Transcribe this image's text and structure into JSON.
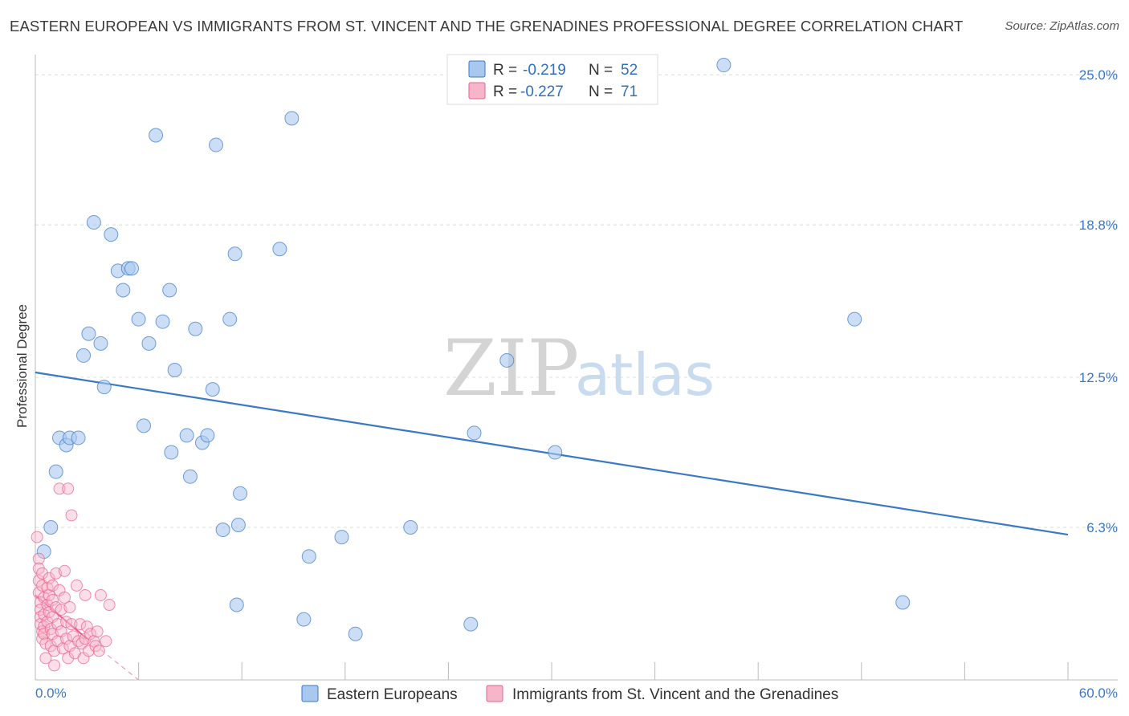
{
  "title": "EASTERN EUROPEAN VS IMMIGRANTS FROM ST. VINCENT AND THE GRENADINES PROFESSIONAL DEGREE CORRELATION CHART",
  "source": "Source: ZipAtlas.com",
  "watermark": {
    "zip": "ZIP",
    "atlas": "atlas"
  },
  "legend_box": {
    "rows": [
      {
        "r_label": "R =",
        "r_value": "-0.219",
        "n_label": "N =",
        "n_value": "52",
        "color": "#a9c8ef"
      },
      {
        "r_label": "R =",
        "r_value": "-0.227",
        "n_label": "N =",
        "n_value": "71",
        "color": "#f6b6c9"
      }
    ]
  },
  "bottom_legend": [
    {
      "label": "Eastern Europeans",
      "color": "#a9c8ef"
    },
    {
      "label": "Immigrants from St. Vincent and the Grenadines",
      "color": "#f6b6c9"
    }
  ],
  "chart_data": {
    "type": "scatter",
    "title": "EASTERN EUROPEAN VS IMMIGRANTS FROM ST. VINCENT AND THE GRENADINES PROFESSIONAL DEGREE CORRELATION CHART",
    "xlabel": "",
    "ylabel": "Professional Degree",
    "xlim": [
      0,
      60
    ],
    "ylim": [
      0,
      25.7
    ],
    "x_tick_labels": [
      "0.0%",
      "60.0%"
    ],
    "y_ticks": [
      6.3,
      12.5,
      18.8,
      25.0
    ],
    "y_tick_labels": [
      "6.3%",
      "12.5%",
      "18.8%",
      "25.0%"
    ],
    "grid": true,
    "legend_position": "top-center",
    "series": [
      {
        "name": "Eastern Europeans",
        "color": "#3a78c8",
        "fill": "#a9c8ef",
        "r": -0.219,
        "n": 52,
        "points": [
          [
            0.5,
            5.3
          ],
          [
            0.9,
            6.3
          ],
          [
            1.2,
            8.6
          ],
          [
            1.4,
            10.0
          ],
          [
            1.8,
            9.7
          ],
          [
            2.0,
            10.0
          ],
          [
            2.5,
            10.0
          ],
          [
            2.8,
            13.4
          ],
          [
            3.1,
            14.3
          ],
          [
            3.4,
            18.9
          ],
          [
            3.8,
            13.9
          ],
          [
            4.0,
            12.1
          ],
          [
            4.4,
            18.4
          ],
          [
            4.8,
            16.9
          ],
          [
            5.1,
            16.1
          ],
          [
            5.4,
            17.0
          ],
          [
            5.6,
            17.0
          ],
          [
            6.0,
            14.9
          ],
          [
            6.3,
            10.5
          ],
          [
            6.6,
            13.9
          ],
          [
            7.0,
            22.5
          ],
          [
            7.4,
            14.8
          ],
          [
            7.8,
            16.1
          ],
          [
            7.9,
            9.4
          ],
          [
            8.1,
            12.8
          ],
          [
            8.8,
            10.1
          ],
          [
            9.0,
            8.4
          ],
          [
            9.3,
            14.5
          ],
          [
            9.7,
            9.8
          ],
          [
            10.0,
            10.1
          ],
          [
            10.3,
            12.0
          ],
          [
            10.5,
            22.1
          ],
          [
            10.9,
            6.2
          ],
          [
            11.3,
            14.9
          ],
          [
            11.6,
            17.6
          ],
          [
            11.7,
            3.1
          ],
          [
            11.8,
            6.4
          ],
          [
            11.9,
            7.7
          ],
          [
            14.9,
            23.2
          ],
          [
            14.2,
            17.8
          ],
          [
            15.6,
            2.5
          ],
          [
            15.9,
            5.1
          ],
          [
            17.8,
            5.9
          ],
          [
            18.6,
            1.9
          ],
          [
            21.8,
            6.3
          ],
          [
            25.3,
            2.3
          ],
          [
            25.5,
            10.2
          ],
          [
            27.4,
            13.2
          ],
          [
            30.2,
            9.4
          ],
          [
            47.6,
            14.9
          ],
          [
            50.4,
            3.2
          ],
          [
            40.0,
            25.4
          ]
        ]
      },
      {
        "name": "Immigrants from St. Vincent and the Grenadines",
        "color": "#e8608e",
        "fill": "#f6b6c9",
        "r": -0.227,
        "n": 71,
        "points": [
          [
            0.1,
            5.9
          ],
          [
            0.2,
            5.0
          ],
          [
            0.2,
            4.6
          ],
          [
            0.2,
            4.1
          ],
          [
            0.2,
            3.6
          ],
          [
            0.3,
            3.2
          ],
          [
            0.3,
            2.9
          ],
          [
            0.3,
            2.6
          ],
          [
            0.3,
            2.3
          ],
          [
            0.4,
            2.0
          ],
          [
            0.4,
            1.7
          ],
          [
            0.4,
            4.4
          ],
          [
            0.4,
            3.9
          ],
          [
            0.5,
            3.4
          ],
          [
            0.5,
            2.7
          ],
          [
            0.5,
            2.2
          ],
          [
            0.5,
            1.9
          ],
          [
            0.6,
            1.5
          ],
          [
            0.6,
            0.9
          ],
          [
            0.7,
            3.8
          ],
          [
            0.7,
            3.1
          ],
          [
            0.7,
            2.4
          ],
          [
            0.8,
            4.2
          ],
          [
            0.8,
            3.5
          ],
          [
            0.8,
            2.8
          ],
          [
            0.9,
            2.1
          ],
          [
            0.9,
            1.4
          ],
          [
            1.0,
            3.9
          ],
          [
            1.0,
            3.3
          ],
          [
            1.0,
            2.6
          ],
          [
            1.0,
            1.9
          ],
          [
            1.1,
            1.2
          ],
          [
            1.1,
            0.6
          ],
          [
            1.2,
            4.4
          ],
          [
            1.2,
            3.0
          ],
          [
            1.3,
            2.3
          ],
          [
            1.3,
            1.6
          ],
          [
            1.4,
            7.9
          ],
          [
            1.4,
            3.7
          ],
          [
            1.5,
            2.9
          ],
          [
            1.5,
            2.0
          ],
          [
            1.6,
            1.3
          ],
          [
            1.7,
            4.5
          ],
          [
            1.7,
            3.4
          ],
          [
            1.8,
            2.4
          ],
          [
            1.8,
            1.7
          ],
          [
            1.9,
            7.9
          ],
          [
            1.9,
            0.9
          ],
          [
            2.0,
            1.4
          ],
          [
            2.0,
            3.0
          ],
          [
            2.1,
            6.8
          ],
          [
            2.1,
            2.3
          ],
          [
            2.2,
            1.8
          ],
          [
            2.3,
            1.1
          ],
          [
            2.4,
            3.9
          ],
          [
            2.5,
            1.6
          ],
          [
            2.6,
            2.3
          ],
          [
            2.7,
            1.5
          ],
          [
            2.8,
            0.9
          ],
          [
            2.9,
            1.7
          ],
          [
            3.0,
            2.2
          ],
          [
            3.1,
            1.2
          ],
          [
            3.2,
            1.9
          ],
          [
            3.4,
            1.6
          ],
          [
            3.5,
            1.4
          ],
          [
            3.6,
            2.0
          ],
          [
            3.7,
            1.2
          ],
          [
            3.8,
            3.5
          ],
          [
            4.1,
            1.6
          ],
          [
            4.3,
            3.1
          ],
          [
            2.9,
            3.5
          ]
        ]
      }
    ],
    "trendlines": [
      {
        "series": "Eastern Europeans",
        "x": [
          0,
          60
        ],
        "y": [
          12.7,
          6.0
        ],
        "style": "solid"
      },
      {
        "series": "Immigrants from St. Vincent and the Grenadines",
        "x": [
          0,
          3.0
        ],
        "y": [
          3.5,
          1.7
        ],
        "style": "solid"
      },
      {
        "series": "Immigrants from St. Vincent and the Grenadines",
        "x": [
          3.0,
          6.0
        ],
        "y": [
          1.7,
          0.0
        ],
        "style": "dashed"
      }
    ]
  }
}
